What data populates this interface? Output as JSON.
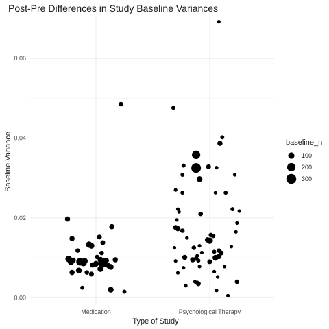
{
  "chart_data": {
    "type": "scatter",
    "title": "Post-Pre Differences in Study Baseline Variances",
    "xlabel": "Type of Study",
    "ylabel": "Baseline Variance",
    "categories": [
      "Medication",
      "Psychological Therapy"
    ],
    "y_ticks": [
      0.0,
      0.02,
      0.04,
      0.06
    ],
    "y_tick_labels": [
      "0.00",
      "0.02",
      "0.04",
      "0.06"
    ],
    "ylim": [
      -0.0015,
      0.0705
    ],
    "grid": true,
    "legend": {
      "title": "baseline_n",
      "placement": "right",
      "entries": [
        {
          "label": "100",
          "size": 100
        },
        {
          "label": "200",
          "size": 200
        },
        {
          "label": "300",
          "size": 300
        }
      ]
    },
    "colors": {
      "points": "#000000",
      "grid": "#ebebeb"
    },
    "series": [
      {
        "category": "Medication",
        "points": [
          {
            "jitter": 0.22,
            "y": 0.0485,
            "n": 40
          },
          {
            "jitter": -0.25,
            "y": 0.0197,
            "n": 60
          },
          {
            "jitter": 0.14,
            "y": 0.0178,
            "n": 60
          },
          {
            "jitter": 0.03,
            "y": 0.0152,
            "n": 50
          },
          {
            "jitter": -0.21,
            "y": 0.0148,
            "n": 60
          },
          {
            "jitter": 0.06,
            "y": 0.0138,
            "n": 50
          },
          {
            "jitter": -0.06,
            "y": 0.0133,
            "n": 100
          },
          {
            "jitter": -0.04,
            "y": 0.013,
            "n": 80
          },
          {
            "jitter": -0.16,
            "y": 0.0118,
            "n": 40
          },
          {
            "jitter": 0.05,
            "y": 0.0112,
            "n": 40
          },
          {
            "jitter": 0.01,
            "y": 0.0102,
            "n": 40
          },
          {
            "jitter": -0.24,
            "y": 0.0097,
            "n": 110
          },
          {
            "jitter": -0.2,
            "y": 0.0094,
            "n": 60
          },
          {
            "jitter": 0.04,
            "y": 0.0095,
            "n": 80
          },
          {
            "jitter": 0.09,
            "y": 0.0093,
            "n": 70
          },
          {
            "jitter": 0.17,
            "y": 0.0095,
            "n": 60
          },
          {
            "jitter": -0.1,
            "y": 0.0092,
            "n": 100
          },
          {
            "jitter": -0.22,
            "y": 0.009,
            "n": 110
          },
          {
            "jitter": -0.14,
            "y": 0.009,
            "n": 160
          },
          {
            "jitter": -0.11,
            "y": 0.0087,
            "n": 120
          },
          {
            "jitter": 0.06,
            "y": 0.0087,
            "n": 250
          },
          {
            "jitter": 0.0,
            "y": 0.0085,
            "n": 80
          },
          {
            "jitter": -0.03,
            "y": 0.0082,
            "n": 60
          },
          {
            "jitter": 0.11,
            "y": 0.008,
            "n": 60
          },
          {
            "jitter": 0.13,
            "y": 0.0077,
            "n": 80
          },
          {
            "jitter": 0.04,
            "y": 0.0072,
            "n": 90
          },
          {
            "jitter": -0.15,
            "y": 0.0068,
            "n": 80
          },
          {
            "jitter": -0.21,
            "y": 0.0063,
            "n": 60
          },
          {
            "jitter": -0.08,
            "y": 0.0063,
            "n": 40
          },
          {
            "jitter": -0.04,
            "y": 0.0059,
            "n": 50
          },
          {
            "jitter": -0.12,
            "y": 0.0025,
            "n": 30
          },
          {
            "jitter": 0.13,
            "y": 0.002,
            "n": 80
          },
          {
            "jitter": 0.25,
            "y": 0.0015,
            "n": 30
          }
        ]
      },
      {
        "category": "Psychological Therapy",
        "points": [
          {
            "jitter": 0.08,
            "y": 0.0692,
            "n": 20
          },
          {
            "jitter": -0.32,
            "y": 0.0476,
            "n": 30
          },
          {
            "jitter": 0.11,
            "y": 0.0402,
            "n": 30
          },
          {
            "jitter": 0.09,
            "y": 0.0387,
            "n": 60
          },
          {
            "jitter": -0.12,
            "y": 0.0358,
            "n": 200
          },
          {
            "jitter": -0.12,
            "y": 0.0325,
            "n": 280
          },
          {
            "jitter": -0.23,
            "y": 0.0331,
            "n": 30
          },
          {
            "jitter": -0.01,
            "y": 0.0328,
            "n": 50
          },
          {
            "jitter": 0.06,
            "y": 0.0326,
            "n": 20
          },
          {
            "jitter": -0.24,
            "y": 0.0308,
            "n": 30
          },
          {
            "jitter": -0.09,
            "y": 0.0297,
            "n": 80
          },
          {
            "jitter": -0.3,
            "y": 0.027,
            "n": 20
          },
          {
            "jitter": -0.24,
            "y": 0.0263,
            "n": 30
          },
          {
            "jitter": 0.14,
            "y": 0.0263,
            "n": 30
          },
          {
            "jitter": 0.05,
            "y": 0.0263,
            "n": 20
          },
          {
            "jitter": 0.22,
            "y": 0.0308,
            "n": 20
          },
          {
            "jitter": -0.28,
            "y": 0.0222,
            "n": 20
          },
          {
            "jitter": -0.27,
            "y": 0.0215,
            "n": 20
          },
          {
            "jitter": -0.08,
            "y": 0.021,
            "n": 40
          },
          {
            "jitter": 0.2,
            "y": 0.0222,
            "n": 30
          },
          {
            "jitter": 0.26,
            "y": 0.0217,
            "n": 20
          },
          {
            "jitter": -0.29,
            "y": 0.0195,
            "n": 20
          },
          {
            "jitter": 0.24,
            "y": 0.0187,
            "n": 20
          },
          {
            "jitter": -0.3,
            "y": 0.0176,
            "n": 50
          },
          {
            "jitter": -0.28,
            "y": 0.0173,
            "n": 60
          },
          {
            "jitter": -0.24,
            "y": 0.0168,
            "n": 40
          },
          {
            "jitter": 0.01,
            "y": 0.0157,
            "n": 40
          },
          {
            "jitter": 0.03,
            "y": 0.0155,
            "n": 40
          },
          {
            "jitter": -0.2,
            "y": 0.015,
            "n": 20
          },
          {
            "jitter": 0.0,
            "y": 0.0143,
            "n": 100
          },
          {
            "jitter": -0.02,
            "y": 0.0145,
            "n": 60
          },
          {
            "jitter": 0.23,
            "y": 0.0165,
            "n": 20
          },
          {
            "jitter": -0.09,
            "y": 0.013,
            "n": 20
          },
          {
            "jitter": 0.19,
            "y": 0.0128,
            "n": 20
          },
          {
            "jitter": -0.14,
            "y": 0.0125,
            "n": 40
          },
          {
            "jitter": -0.31,
            "y": 0.0125,
            "n": 20
          },
          {
            "jitter": -0.07,
            "y": 0.0113,
            "n": 20
          },
          {
            "jitter": 0.08,
            "y": 0.0118,
            "n": 40
          },
          {
            "jitter": 0.04,
            "y": 0.0115,
            "n": 30
          },
          {
            "jitter": 0.1,
            "y": 0.0112,
            "n": 50
          },
          {
            "jitter": -0.11,
            "y": 0.0105,
            "n": 20
          },
          {
            "jitter": -0.22,
            "y": 0.0101,
            "n": 60
          },
          {
            "jitter": 0.05,
            "y": 0.01,
            "n": 80
          },
          {
            "jitter": 0.08,
            "y": 0.0103,
            "n": 60
          },
          {
            "jitter": -0.12,
            "y": 0.0098,
            "n": 40
          },
          {
            "jitter": -0.15,
            "y": 0.0095,
            "n": 60
          },
          {
            "jitter": -0.1,
            "y": 0.0093,
            "n": 30
          },
          {
            "jitter": -0.3,
            "y": 0.0092,
            "n": 20
          },
          {
            "jitter": 0.0,
            "y": 0.009,
            "n": 50
          },
          {
            "jitter": -0.09,
            "y": 0.0078,
            "n": 20
          },
          {
            "jitter": 0.13,
            "y": 0.0078,
            "n": 20
          },
          {
            "jitter": -0.23,
            "y": 0.0075,
            "n": 20
          },
          {
            "jitter": 0.04,
            "y": 0.0065,
            "n": 20
          },
          {
            "jitter": -0.28,
            "y": 0.0062,
            "n": 20
          },
          {
            "jitter": 0.07,
            "y": 0.0052,
            "n": 20
          },
          {
            "jitter": -0.13,
            "y": 0.004,
            "n": 20
          },
          {
            "jitter": -0.11,
            "y": 0.0037,
            "n": 40
          },
          {
            "jitter": -0.1,
            "y": 0.0035,
            "n": 50
          },
          {
            "jitter": -0.21,
            "y": 0.003,
            "n": 20
          },
          {
            "jitter": 0.24,
            "y": 0.004,
            "n": 40
          },
          {
            "jitter": 0.06,
            "y": 0.0018,
            "n": 20
          },
          {
            "jitter": 0.16,
            "y": 0.0005,
            "n": 20
          }
        ]
      }
    ]
  }
}
